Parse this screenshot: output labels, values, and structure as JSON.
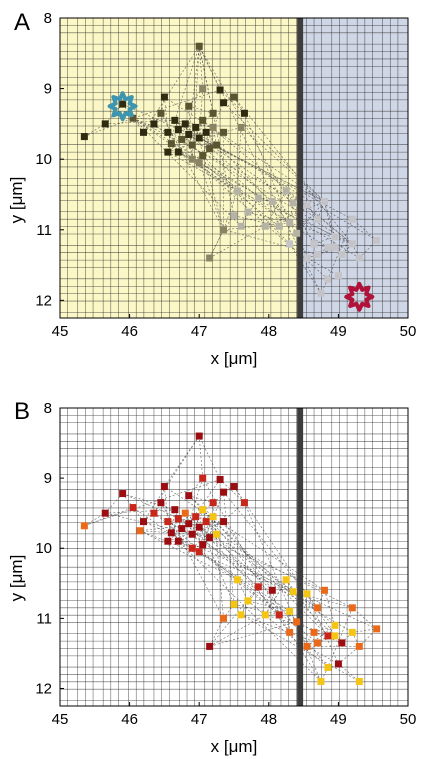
{
  "chart_data": [
    {
      "panel": "A",
      "type": "scatter",
      "xlabel": "x [μm]",
      "ylabel": "y [μm]",
      "xlim": [
        45,
        50
      ],
      "ylim": [
        12.25,
        8
      ],
      "y_inverted": true,
      "xticks": [
        45,
        46,
        47,
        48,
        49,
        50
      ],
      "yticks": [
        8,
        9,
        10,
        11,
        12
      ],
      "grid": true,
      "boundary_x": 48.45,
      "regions": [
        {
          "x0": 45,
          "x1": 48.45,
          "color": "#fbf7c6"
        },
        {
          "x0": 48.45,
          "x1": 50,
          "color": "#cfd6e5"
        }
      ],
      "start_marker": {
        "x": 45.9,
        "y": 9.25,
        "color": "#3e95b0"
      },
      "end_marker": {
        "x": 49.3,
        "y": 11.95,
        "color": "#b0123a"
      },
      "colors": [
        "#2f2b10",
        "#5a5430",
        "#8a8464",
        "#b5b3a6",
        "#c4c4c8"
      ],
      "points": [
        [
          45.35,
          9.68,
          0
        ],
        [
          45.65,
          9.5,
          0
        ],
        [
          45.9,
          9.22,
          0
        ],
        [
          46.05,
          9.42,
          1
        ],
        [
          46.2,
          9.62,
          0
        ],
        [
          46.35,
          9.5,
          0
        ],
        [
          46.45,
          9.35,
          1
        ],
        [
          46.5,
          9.12,
          0
        ],
        [
          46.55,
          9.62,
          0
        ],
        [
          46.6,
          9.78,
          1
        ],
        [
          46.65,
          9.45,
          0
        ],
        [
          46.7,
          9.58,
          0
        ],
        [
          46.75,
          9.72,
          1
        ],
        [
          46.8,
          9.5,
          0
        ],
        [
          46.85,
          9.65,
          0
        ],
        [
          46.9,
          9.8,
          1
        ],
        [
          46.95,
          9.55,
          0
        ],
        [
          47.0,
          9.7,
          0
        ],
        [
          47.05,
          9.45,
          1
        ],
        [
          47.1,
          9.62,
          0
        ],
        [
          47.15,
          9.85,
          1
        ],
        [
          47.2,
          9.55,
          2
        ],
        [
          47.25,
          9.8,
          1
        ],
        [
          47.05,
          9.95,
          1
        ],
        [
          46.9,
          10.0,
          2
        ],
        [
          46.7,
          9.9,
          0
        ],
        [
          47.0,
          10.05,
          2
        ],
        [
          47.35,
          9.2,
          0
        ],
        [
          47.5,
          9.12,
          1
        ],
        [
          47.65,
          9.35,
          0
        ],
        [
          47.3,
          9.02,
          0
        ],
        [
          47.0,
          8.4,
          1
        ],
        [
          47.05,
          9.0,
          2
        ],
        [
          46.85,
          9.25,
          1
        ],
        [
          47.2,
          9.35,
          1
        ],
        [
          46.55,
          9.9,
          0
        ],
        [
          47.35,
          9.62,
          1
        ],
        [
          47.6,
          9.55,
          2
        ],
        [
          47.55,
          10.45,
          3
        ],
        [
          47.7,
          10.75,
          3
        ],
        [
          47.6,
          10.95,
          3
        ],
        [
          47.85,
          10.55,
          3
        ],
        [
          48.05,
          10.6,
          3
        ],
        [
          48.15,
          10.95,
          3
        ],
        [
          47.5,
          10.8,
          3
        ],
        [
          47.35,
          11.0,
          2
        ],
        [
          47.15,
          11.4,
          2
        ],
        [
          47.95,
          10.95,
          3
        ],
        [
          48.25,
          10.45,
          3
        ],
        [
          48.35,
          10.62,
          3
        ],
        [
          48.55,
          10.65,
          4
        ],
        [
          48.7,
          10.85,
          4
        ],
        [
          48.8,
          10.6,
          4
        ],
        [
          48.95,
          11.1,
          4
        ],
        [
          48.65,
          11.2,
          4
        ],
        [
          48.85,
          11.25,
          4
        ],
        [
          48.7,
          11.35,
          4
        ],
        [
          48.95,
          11.25,
          4
        ],
        [
          49.05,
          11.35,
          4
        ],
        [
          49.2,
          11.2,
          4
        ],
        [
          49.3,
          11.4,
          4
        ],
        [
          49.55,
          11.15,
          4
        ],
        [
          49.2,
          10.85,
          4
        ],
        [
          48.85,
          11.7,
          4
        ],
        [
          48.75,
          11.9,
          4
        ],
        [
          48.3,
          11.2,
          4
        ],
        [
          48.3,
          10.9,
          3
        ],
        [
          48.4,
          11.05,
          3
        ],
        [
          48.55,
          11.4,
          4
        ],
        [
          49.0,
          11.65,
          4
        ]
      ]
    },
    {
      "panel": "B",
      "type": "scatter",
      "xlabel": "x [μm]",
      "ylabel": "y [μm]",
      "xlim": [
        45,
        50
      ],
      "ylim": [
        12.25,
        8
      ],
      "y_inverted": true,
      "xticks": [
        45,
        46,
        47,
        48,
        49,
        50
      ],
      "yticks": [
        8,
        9,
        10,
        11,
        12
      ],
      "grid": true,
      "boundary_x": 48.45,
      "colors": [
        "#9c0d12",
        "#c8261b",
        "#ea6a1a",
        "#f5c516"
      ],
      "points": [
        [
          45.35,
          9.68,
          2
        ],
        [
          45.65,
          9.5,
          0
        ],
        [
          45.9,
          9.22,
          0
        ],
        [
          46.05,
          9.42,
          1
        ],
        [
          46.2,
          9.62,
          0
        ],
        [
          46.35,
          9.5,
          1
        ],
        [
          46.45,
          9.35,
          0
        ],
        [
          46.5,
          9.12,
          0
        ],
        [
          46.55,
          9.62,
          1
        ],
        [
          46.6,
          9.78,
          0
        ],
        [
          46.65,
          9.45,
          0
        ],
        [
          46.7,
          9.58,
          1
        ],
        [
          46.75,
          9.72,
          0
        ],
        [
          46.8,
          9.5,
          2
        ],
        [
          46.85,
          9.65,
          0
        ],
        [
          46.9,
          9.8,
          0
        ],
        [
          46.95,
          9.55,
          1
        ],
        [
          47.0,
          9.7,
          0
        ],
        [
          47.05,
          9.45,
          3
        ],
        [
          47.1,
          9.62,
          1
        ],
        [
          47.15,
          9.85,
          0
        ],
        [
          47.2,
          9.55,
          3
        ],
        [
          47.25,
          9.8,
          3
        ],
        [
          47.05,
          9.95,
          0
        ],
        [
          46.9,
          10.0,
          1
        ],
        [
          46.7,
          9.9,
          0
        ],
        [
          47.0,
          10.05,
          1
        ],
        [
          47.35,
          9.2,
          0
        ],
        [
          47.5,
          9.12,
          0
        ],
        [
          47.65,
          9.35,
          1
        ],
        [
          47.3,
          9.02,
          0
        ],
        [
          47.0,
          8.4,
          0
        ],
        [
          47.05,
          9.0,
          1
        ],
        [
          46.85,
          9.25,
          0
        ],
        [
          47.2,
          9.35,
          1
        ],
        [
          46.55,
          9.9,
          0
        ],
        [
          47.35,
          9.62,
          0
        ],
        [
          46.15,
          9.75,
          2
        ],
        [
          47.55,
          10.45,
          3
        ],
        [
          47.7,
          10.75,
          3
        ],
        [
          47.6,
          10.95,
          3
        ],
        [
          47.85,
          10.55,
          1
        ],
        [
          48.05,
          10.6,
          0
        ],
        [
          48.15,
          10.95,
          1
        ],
        [
          47.5,
          10.8,
          3
        ],
        [
          47.35,
          11.0,
          2
        ],
        [
          47.15,
          11.4,
          0
        ],
        [
          47.95,
          10.95,
          3
        ],
        [
          48.25,
          10.45,
          3
        ],
        [
          48.35,
          10.62,
          3
        ],
        [
          48.55,
          10.65,
          3
        ],
        [
          48.7,
          10.85,
          2
        ],
        [
          48.8,
          10.6,
          2
        ],
        [
          48.95,
          11.1,
          3
        ],
        [
          48.65,
          11.2,
          2
        ],
        [
          48.85,
          11.25,
          1
        ],
        [
          48.7,
          11.35,
          2
        ],
        [
          48.95,
          11.25,
          3
        ],
        [
          49.05,
          11.35,
          0
        ],
        [
          49.2,
          11.2,
          3
        ],
        [
          49.3,
          11.4,
          2
        ],
        [
          49.55,
          11.15,
          2
        ],
        [
          49.2,
          10.85,
          2
        ],
        [
          48.85,
          11.7,
          3
        ],
        [
          48.75,
          11.9,
          3
        ],
        [
          48.3,
          11.2,
          2
        ],
        [
          48.3,
          10.9,
          3
        ],
        [
          48.4,
          11.05,
          2
        ],
        [
          48.55,
          11.4,
          2
        ],
        [
          49.0,
          11.65,
          0
        ],
        [
          49.3,
          11.9,
          3
        ]
      ]
    }
  ]
}
